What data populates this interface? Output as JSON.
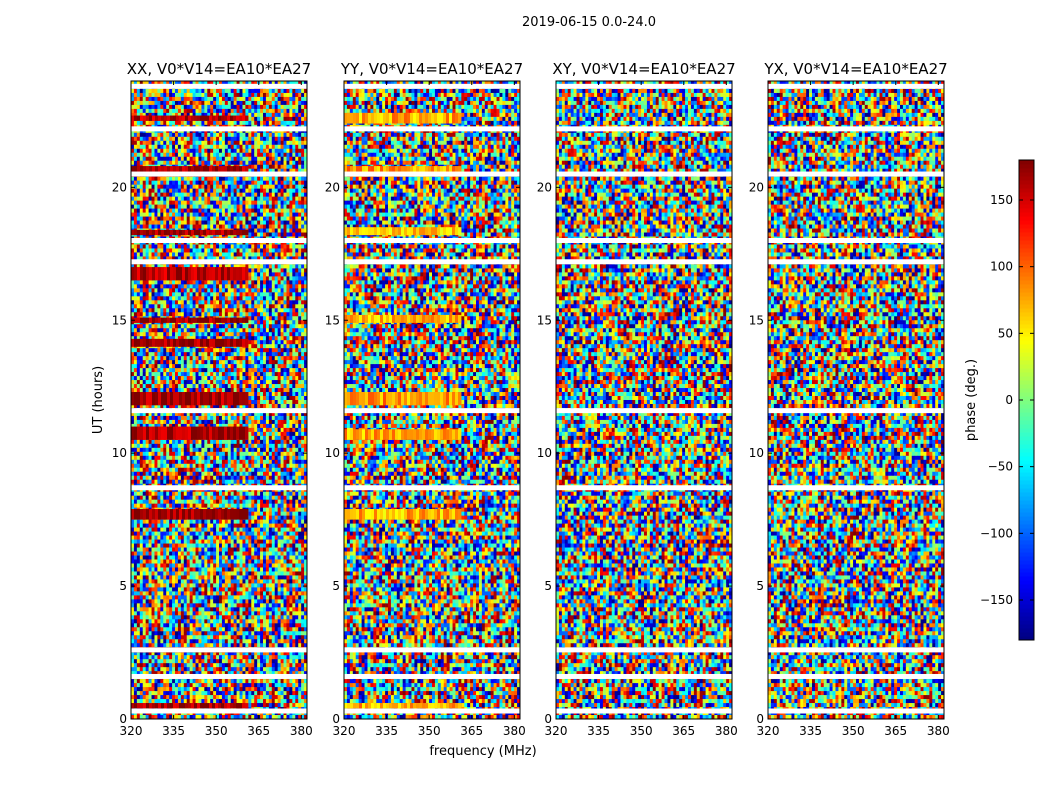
{
  "suptitle": "2019-06-15 0.0-24.0",
  "xlabel": "frequency (MHz)",
  "ylabel": "UT (hours)",
  "colorbar": {
    "label": "phase (deg.)",
    "range": [
      -180,
      180
    ],
    "ticks": [
      150,
      100,
      50,
      0,
      -50,
      -100,
      -150
    ],
    "tick_labels": [
      "150",
      "100",
      "50",
      "0",
      "−50",
      "−100",
      "−150"
    ],
    "cmap_stops": [
      "#00007f",
      "#0000ff",
      "#007fff",
      "#00ffff",
      "#7fff7f",
      "#ffff00",
      "#ff7f00",
      "#ff0000",
      "#7f0000"
    ]
  },
  "chart_data": [
    {
      "type": "heatmap",
      "title": "XX, V0*V14=EA10*EA27",
      "xlim": [
        320,
        382
      ],
      "ylim": [
        0,
        24
      ],
      "xticks": [
        320,
        335,
        350,
        365,
        380
      ],
      "yticks": [
        0,
        5,
        10,
        15,
        20
      ],
      "xtick_labels": [
        "320",
        "335",
        "350",
        "365",
        "380"
      ],
      "ytick_labels": [
        "0",
        "5",
        "10",
        "15",
        "20"
      ],
      "value_range": [
        -180,
        180
      ],
      "flagged_ut_hours": [
        23.8,
        22.2,
        20.5,
        18.0,
        17.2,
        11.6,
        8.7,
        2.6,
        1.6,
        0.3
      ],
      "dominant_phase_bands": [
        {
          "ut_start": 0.4,
          "ut_end": 0.6,
          "freq_end": 361,
          "phase": 170
        },
        {
          "ut_start": 2.5,
          "ut_end": 2.7,
          "freq_end": 361,
          "phase": 170
        },
        {
          "ut_start": 7.5,
          "ut_end": 7.9,
          "freq_end": 361,
          "phase": 170
        },
        {
          "ut_start": 10.5,
          "ut_end": 11.0,
          "freq_end": 361,
          "phase": 165
        },
        {
          "ut_start": 11.8,
          "ut_end": 12.3,
          "freq_end": 361,
          "phase": 170
        },
        {
          "ut_start": 14.0,
          "ut_end": 14.3,
          "freq_end": 361,
          "phase": 165
        },
        {
          "ut_start": 14.9,
          "ut_end": 15.1,
          "freq_end": 361,
          "phase": 170
        },
        {
          "ut_start": 16.5,
          "ut_end": 17.0,
          "freq_end": 361,
          "phase": 165
        },
        {
          "ut_start": 18.2,
          "ut_end": 18.4,
          "freq_end": 361,
          "phase": 170
        },
        {
          "ut_start": 20.4,
          "ut_end": 20.8,
          "freq_end": 361,
          "phase": 170
        },
        {
          "ut_start": 22.5,
          "ut_end": 22.7,
          "freq_end": 361,
          "phase": 165
        }
      ]
    },
    {
      "type": "heatmap",
      "title": "YY, V0*V14=EA10*EA27",
      "xlim": [
        320,
        382
      ],
      "ylim": [
        0,
        24
      ],
      "xticks": [
        320,
        335,
        350,
        365,
        380
      ],
      "yticks": [
        0,
        5,
        10,
        15,
        20
      ],
      "xtick_labels": [
        "320",
        "335",
        "350",
        "365",
        "380"
      ],
      "ytick_labels": [
        "0",
        "5",
        "10",
        "15",
        "20"
      ],
      "value_range": [
        -180,
        180
      ],
      "flagged_ut_hours": [
        23.8,
        22.2,
        20.5,
        18.0,
        17.2,
        11.6,
        8.7,
        2.6,
        1.6,
        0.3
      ],
      "dominant_phase_bands": [
        {
          "ut_start": 0.4,
          "ut_end": 0.6,
          "freq_end": 361,
          "phase": 75
        },
        {
          "ut_start": 7.5,
          "ut_end": 7.9,
          "freq_end": 361,
          "phase": 70
        },
        {
          "ut_start": 10.5,
          "ut_end": 10.9,
          "freq_end": 361,
          "phase": 75
        },
        {
          "ut_start": 11.8,
          "ut_end": 12.3,
          "freq_end": 361,
          "phase": 80
        },
        {
          "ut_start": 14.9,
          "ut_end": 15.2,
          "freq_end": 361,
          "phase": 70
        },
        {
          "ut_start": 18.2,
          "ut_end": 18.5,
          "freq_end": 361,
          "phase": 65
        },
        {
          "ut_start": 20.4,
          "ut_end": 20.8,
          "freq_end": 361,
          "phase": 80
        },
        {
          "ut_start": 22.4,
          "ut_end": 22.8,
          "freq_end": 361,
          "phase": 75
        }
      ]
    },
    {
      "type": "heatmap",
      "title": "XY, V0*V14=EA10*EA27",
      "xlim": [
        320,
        382
      ],
      "ylim": [
        0,
        24
      ],
      "xticks": [
        320,
        335,
        350,
        365,
        380
      ],
      "yticks": [
        0,
        5,
        10,
        15,
        20
      ],
      "xtick_labels": [
        "320",
        "335",
        "350",
        "365",
        "380"
      ],
      "ytick_labels": [
        "0",
        "5",
        "10",
        "15",
        "20"
      ],
      "value_range": [
        -180,
        180
      ],
      "flagged_ut_hours": [
        23.8,
        22.2,
        20.5,
        18.0,
        17.2,
        11.6,
        8.7,
        2.6,
        1.6,
        0.3
      ],
      "dominant_phase_bands": []
    },
    {
      "type": "heatmap",
      "title": "YX, V0*V14=EA10*EA27",
      "xlim": [
        320,
        382
      ],
      "ylim": [
        0,
        24
      ],
      "xticks": [
        320,
        335,
        350,
        365,
        380
      ],
      "yticks": [
        0,
        5,
        10,
        15,
        20
      ],
      "xtick_labels": [
        "320",
        "335",
        "350",
        "365",
        "380"
      ],
      "ytick_labels": [
        "0",
        "5",
        "10",
        "15",
        "20"
      ],
      "value_range": [
        -180,
        180
      ],
      "flagged_ut_hours": [
        23.8,
        22.2,
        20.5,
        18.0,
        17.2,
        11.6,
        8.7,
        2.6,
        1.6,
        0.3
      ],
      "dominant_phase_bands": []
    }
  ]
}
